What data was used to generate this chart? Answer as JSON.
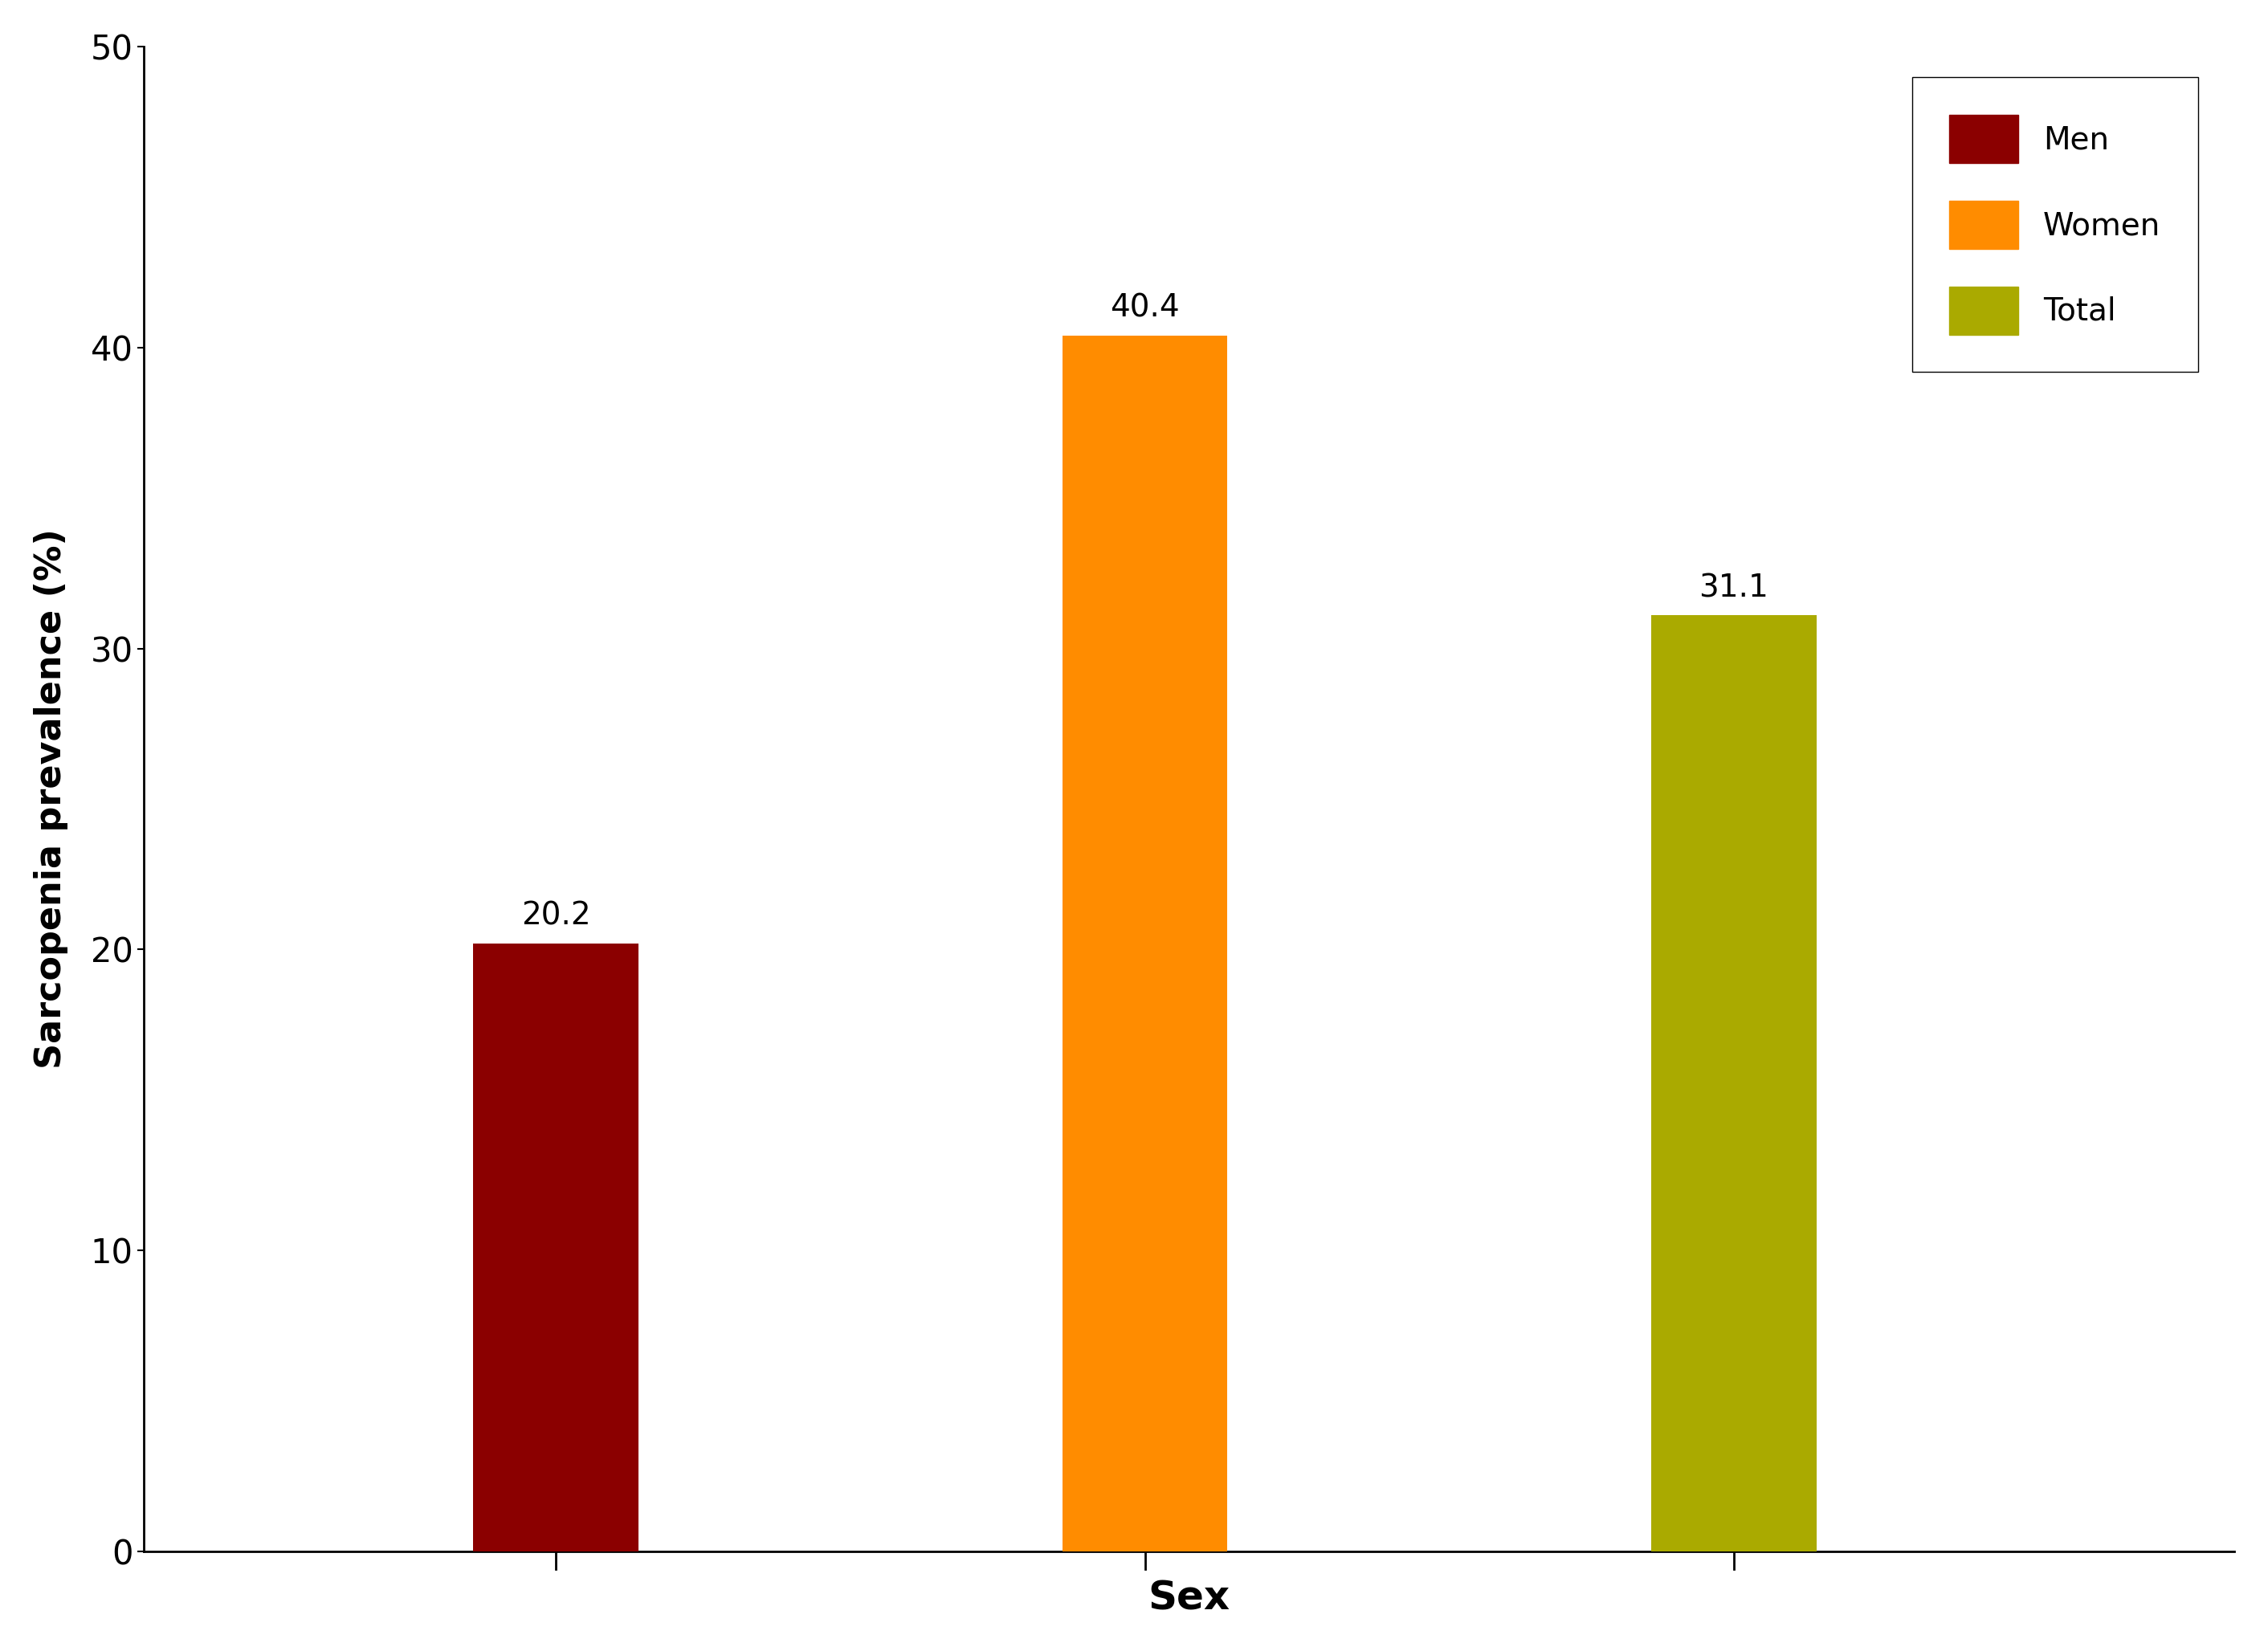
{
  "categories": [
    "Men",
    "Women",
    "Total"
  ],
  "values": [
    20.2,
    40.4,
    31.1
  ],
  "bar_colors": [
    "#8B0000",
    "#FF8C00",
    "#AAAA00"
  ],
  "legend_labels": [
    "Men",
    "Women",
    "Total"
  ],
  "xlabel": "Sex",
  "ylabel": "Sarcopenia prevalence (%)",
  "ylim": [
    0,
    50
  ],
  "yticks": [
    0,
    10,
    20,
    30,
    40,
    50
  ],
  "tick_fontsize": 30,
  "annotation_fontsize": 28,
  "legend_fontsize": 28,
  "xlabel_fontsize": 36,
  "ylabel_fontsize": 32,
  "bar_width": 0.28,
  "background_color": "#ffffff",
  "x_positions": [
    1,
    2,
    3
  ],
  "xlim": [
    0.3,
    3.85
  ]
}
